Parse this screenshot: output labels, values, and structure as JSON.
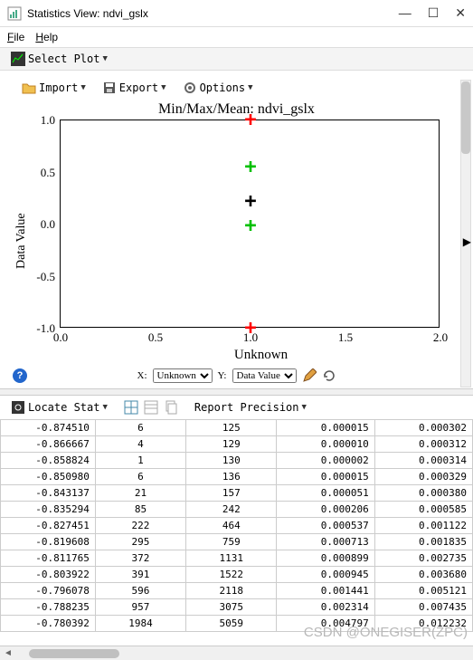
{
  "window": {
    "title": "Statistics View: ndvi_gslx"
  },
  "menubar": {
    "file": "File",
    "help": "Help"
  },
  "toolbar1": {
    "select_plot": "Select Plot"
  },
  "toolbar2": {
    "import": "Import",
    "export": "Export",
    "options": "Options"
  },
  "chart": {
    "type": "scatter",
    "title": "Min/Max/Mean: ndvi_gslx",
    "xlabel": "Unknown",
    "ylabel": "Data Value",
    "xlim": [
      0.0,
      2.0
    ],
    "ylim": [
      -1.0,
      1.0
    ],
    "xticks": [
      "0.0",
      "0.5",
      "1.0",
      "1.5",
      "2.0"
    ],
    "yticks": [
      "-1.0",
      "-0.5",
      "0.0",
      "0.5",
      "1.0"
    ],
    "points": [
      {
        "x": 1.0,
        "y": 1.0,
        "color": "#ff0000",
        "symbol": "+"
      },
      {
        "x": 1.0,
        "y": 0.55,
        "color": "#00c000",
        "symbol": "+"
      },
      {
        "x": 1.0,
        "y": 0.22,
        "color": "#000000",
        "symbol": "+"
      },
      {
        "x": 1.0,
        "y": -0.02,
        "color": "#00c000",
        "symbol": "+"
      },
      {
        "x": 1.0,
        "y": -1.0,
        "color": "#ff0000",
        "symbol": "+"
      }
    ],
    "background": "#ffffff",
    "border": "#000000",
    "tick_fontsize": 13,
    "label_fontsize": 15,
    "title_fontsize": 16
  },
  "axis_controls": {
    "x_label": "X:",
    "x_value": "Unknown",
    "y_label": "Y:",
    "y_value": "Data Value"
  },
  "toolbar3": {
    "locate_stat": "Locate Stat",
    "report_precision": "Report Precision"
  },
  "table": {
    "rows": [
      [
        "-0.874510",
        "6",
        "125",
        "0.000015",
        "0.000302"
      ],
      [
        "-0.866667",
        "4",
        "129",
        "0.000010",
        "0.000312"
      ],
      [
        "-0.858824",
        "1",
        "130",
        "0.000002",
        "0.000314"
      ],
      [
        "-0.850980",
        "6",
        "136",
        "0.000015",
        "0.000329"
      ],
      [
        "-0.843137",
        "21",
        "157",
        "0.000051",
        "0.000380"
      ],
      [
        "-0.835294",
        "85",
        "242",
        "0.000206",
        "0.000585"
      ],
      [
        "-0.827451",
        "222",
        "464",
        "0.000537",
        "0.001122"
      ],
      [
        "-0.819608",
        "295",
        "759",
        "0.000713",
        "0.001835"
      ],
      [
        "-0.811765",
        "372",
        "1131",
        "0.000899",
        "0.002735"
      ],
      [
        "-0.803922",
        "391",
        "1522",
        "0.000945",
        "0.003680"
      ],
      [
        "-0.796078",
        "596",
        "2118",
        "0.001441",
        "0.005121"
      ],
      [
        "-0.788235",
        "957",
        "3075",
        "0.002314",
        "0.007435"
      ],
      [
        "-0.780392",
        "1984",
        "5059",
        "0.004797",
        "0.012232"
      ]
    ]
  },
  "watermark": "CSDN @ONEGISER(ZPC)"
}
